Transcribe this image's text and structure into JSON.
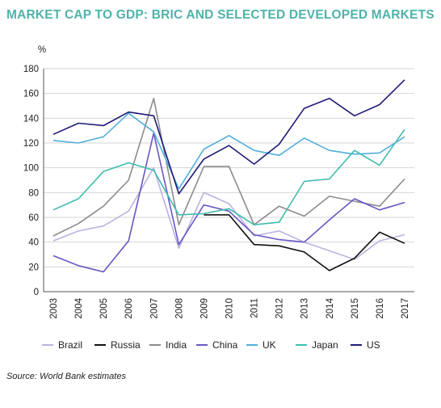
{
  "title": "MARKET CAP TO GDP: BRIC AND SELECTED DEVELOPED MARKETS",
  "title_color": "#4fb3a9",
  "source": "Source: World Bank estimates",
  "chart_data": {
    "type": "line",
    "ylabel": "%",
    "xlabel": "",
    "ylim": [
      0,
      180
    ],
    "yticks": [
      0,
      20,
      40,
      60,
      80,
      100,
      120,
      140,
      160,
      180
    ],
    "grid": "horizontal",
    "legend": "bottom",
    "x": [
      "2003",
      "2004",
      "2005",
      "2006",
      "2007",
      "2008",
      "2009",
      "2010",
      "2011",
      "2012",
      "2013",
      "2014",
      "2015",
      "2016",
      "2017"
    ],
    "series": [
      {
        "name": "Brazil",
        "color": "#b9b3e0",
        "values": [
          41,
          49,
          53,
          65,
          100,
          35,
          80,
          71,
          45,
          49,
          40,
          33,
          26,
          41,
          46
        ]
      },
      {
        "name": "Russia",
        "color": "#111111",
        "values": [
          null,
          null,
          null,
          null,
          null,
          null,
          62,
          62,
          38,
          37,
          32,
          17,
          27,
          48,
          39
        ]
      },
      {
        "name": "India",
        "color": "#8c8c8c",
        "values": [
          45,
          55,
          69,
          90,
          156,
          54,
          101,
          101,
          54,
          69,
          61,
          77,
          73,
          69,
          91
        ]
      },
      {
        "name": "China",
        "color": "#6a55c4",
        "values": [
          29,
          21,
          16,
          41,
          128,
          38,
          70,
          65,
          46,
          42,
          40,
          58,
          75,
          66,
          72
        ]
      },
      {
        "name": "UK",
        "color": "#52aedd",
        "values": [
          122,
          120,
          125,
          144,
          129,
          83,
          115,
          126,
          114,
          110,
          124,
          114,
          111,
          112,
          125
        ]
      },
      {
        "name": "Japan",
        "color": "#3fbcae",
        "values": [
          66,
          75,
          97,
          104,
          98,
          62,
          63,
          67,
          54,
          56,
          89,
          91,
          114,
          102,
          131
        ]
      },
      {
        "name": "US",
        "color": "#1f1b77",
        "values": [
          127,
          136,
          134,
          145,
          142,
          79,
          107,
          118,
          103,
          119,
          148,
          156,
          142,
          151,
          171
        ]
      }
    ]
  }
}
